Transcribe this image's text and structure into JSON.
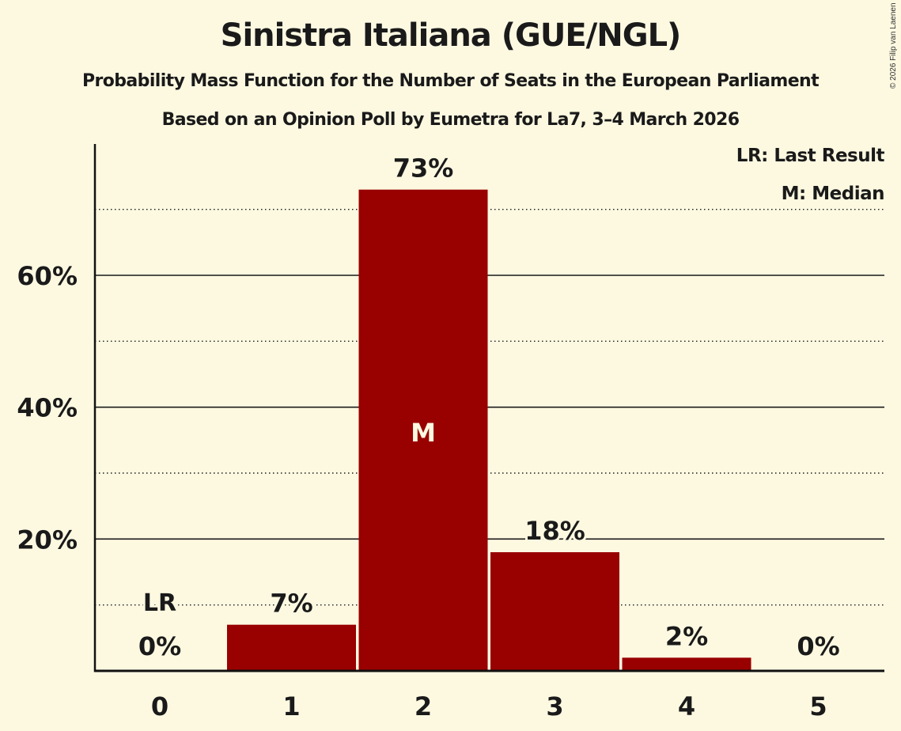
{
  "header": {
    "title": "Sinistra Italiana (GUE/NGL)",
    "subtitle": "Probability Mass Function for the Number of Seats in the European Parliament",
    "subtitle2": "Based on an Opinion Poll by Eumetra for La7, 3–4 March 2026"
  },
  "copyright": "© 2026 Filip van Laenen",
  "legend": {
    "last_result": "LR: Last Result",
    "median": "M: Median"
  },
  "colors": {
    "background": "#fdf9e1",
    "bar": "#990000",
    "text": "#1a1a1a"
  },
  "markers": {
    "last_result_label": "LR",
    "median_label": "M"
  },
  "chart_data": {
    "type": "bar",
    "title": "Sinistra Italiana (GUE/NGL)",
    "subtitle": "Probability Mass Function for the Number of Seats in the European Parliament",
    "caption": "Based on an Opinion Poll by Eumetra for La7, 3–4 March 2026",
    "xlabel": "",
    "ylabel": "",
    "categories": [
      "0",
      "1",
      "2",
      "3",
      "4",
      "5"
    ],
    "values": [
      0,
      7,
      73,
      18,
      2,
      0
    ],
    "value_labels": [
      "0%",
      "7%",
      "73%",
      "18%",
      "2%",
      "0%"
    ],
    "ylim": [
      0,
      80
    ],
    "yticks": [
      20,
      40,
      60
    ],
    "ytick_labels": [
      "20%",
      "40%",
      "60%"
    ],
    "minor_gridlines": [
      10,
      30,
      50,
      70
    ],
    "grid": true,
    "last_result_seat": 0,
    "median_seat": 2,
    "legend_position": "top-right",
    "legend": [
      "LR: Last Result",
      "M: Median"
    ]
  }
}
